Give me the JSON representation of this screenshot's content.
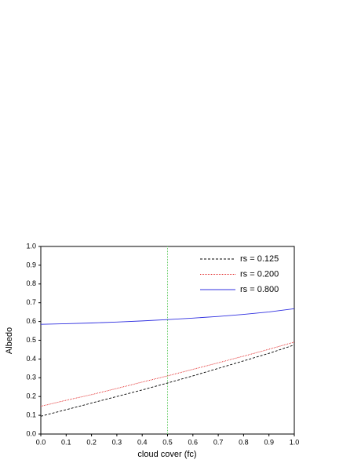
{
  "chart_data": {
    "type": "line",
    "x_label": "cloud cover (fc)",
    "y_label": "Albedo",
    "x": [
      0,
      0.1,
      0.2,
      0.3,
      0.4,
      0.5,
      0.6,
      0.7,
      0.8,
      0.9,
      1
    ],
    "series": [
      {
        "name": "rs = 0.125",
        "color": "#000000",
        "dash": "3,2",
        "values": [
          0.095,
          0.13,
          0.165,
          0.2,
          0.235,
          0.272,
          0.31,
          0.35,
          0.39,
          0.43,
          0.475
        ]
      },
      {
        "name": "rs = 0.200",
        "color": "#e02020",
        "dash": "1,1",
        "values": [
          0.148,
          0.18,
          0.21,
          0.243,
          0.277,
          0.31,
          0.345,
          0.38,
          0.415,
          0.452,
          0.49
        ]
      },
      {
        "name": "rs = 0.800",
        "color": "#3030e0",
        "dash": "none",
        "values": [
          0.585,
          0.588,
          0.592,
          0.597,
          0.603,
          0.61,
          0.618,
          0.627,
          0.638,
          0.651,
          0.668
        ]
      }
    ],
    "reference_line": {
      "x": 0.5,
      "color": "#66cc66"
    },
    "xlim": [
      0,
      1
    ],
    "ylim": [
      0,
      1
    ],
    "xticks": [
      {
        "value": 0,
        "label": "0.0"
      },
      0.1,
      0.2,
      0.3,
      0.4,
      0.5,
      0.6,
      0.7,
      0.8,
      0.9,
      {
        "value": 1,
        "label": "1.0"
      }
    ],
    "yticks": [
      {
        "value": 0,
        "label": "0.0"
      },
      0.1,
      0.2,
      0.3,
      0.4,
      0.5,
      0.6,
      0.7,
      0.8,
      0.9,
      {
        "value": 1,
        "label": "1.0"
      }
    ],
    "legend": "upper-right"
  }
}
